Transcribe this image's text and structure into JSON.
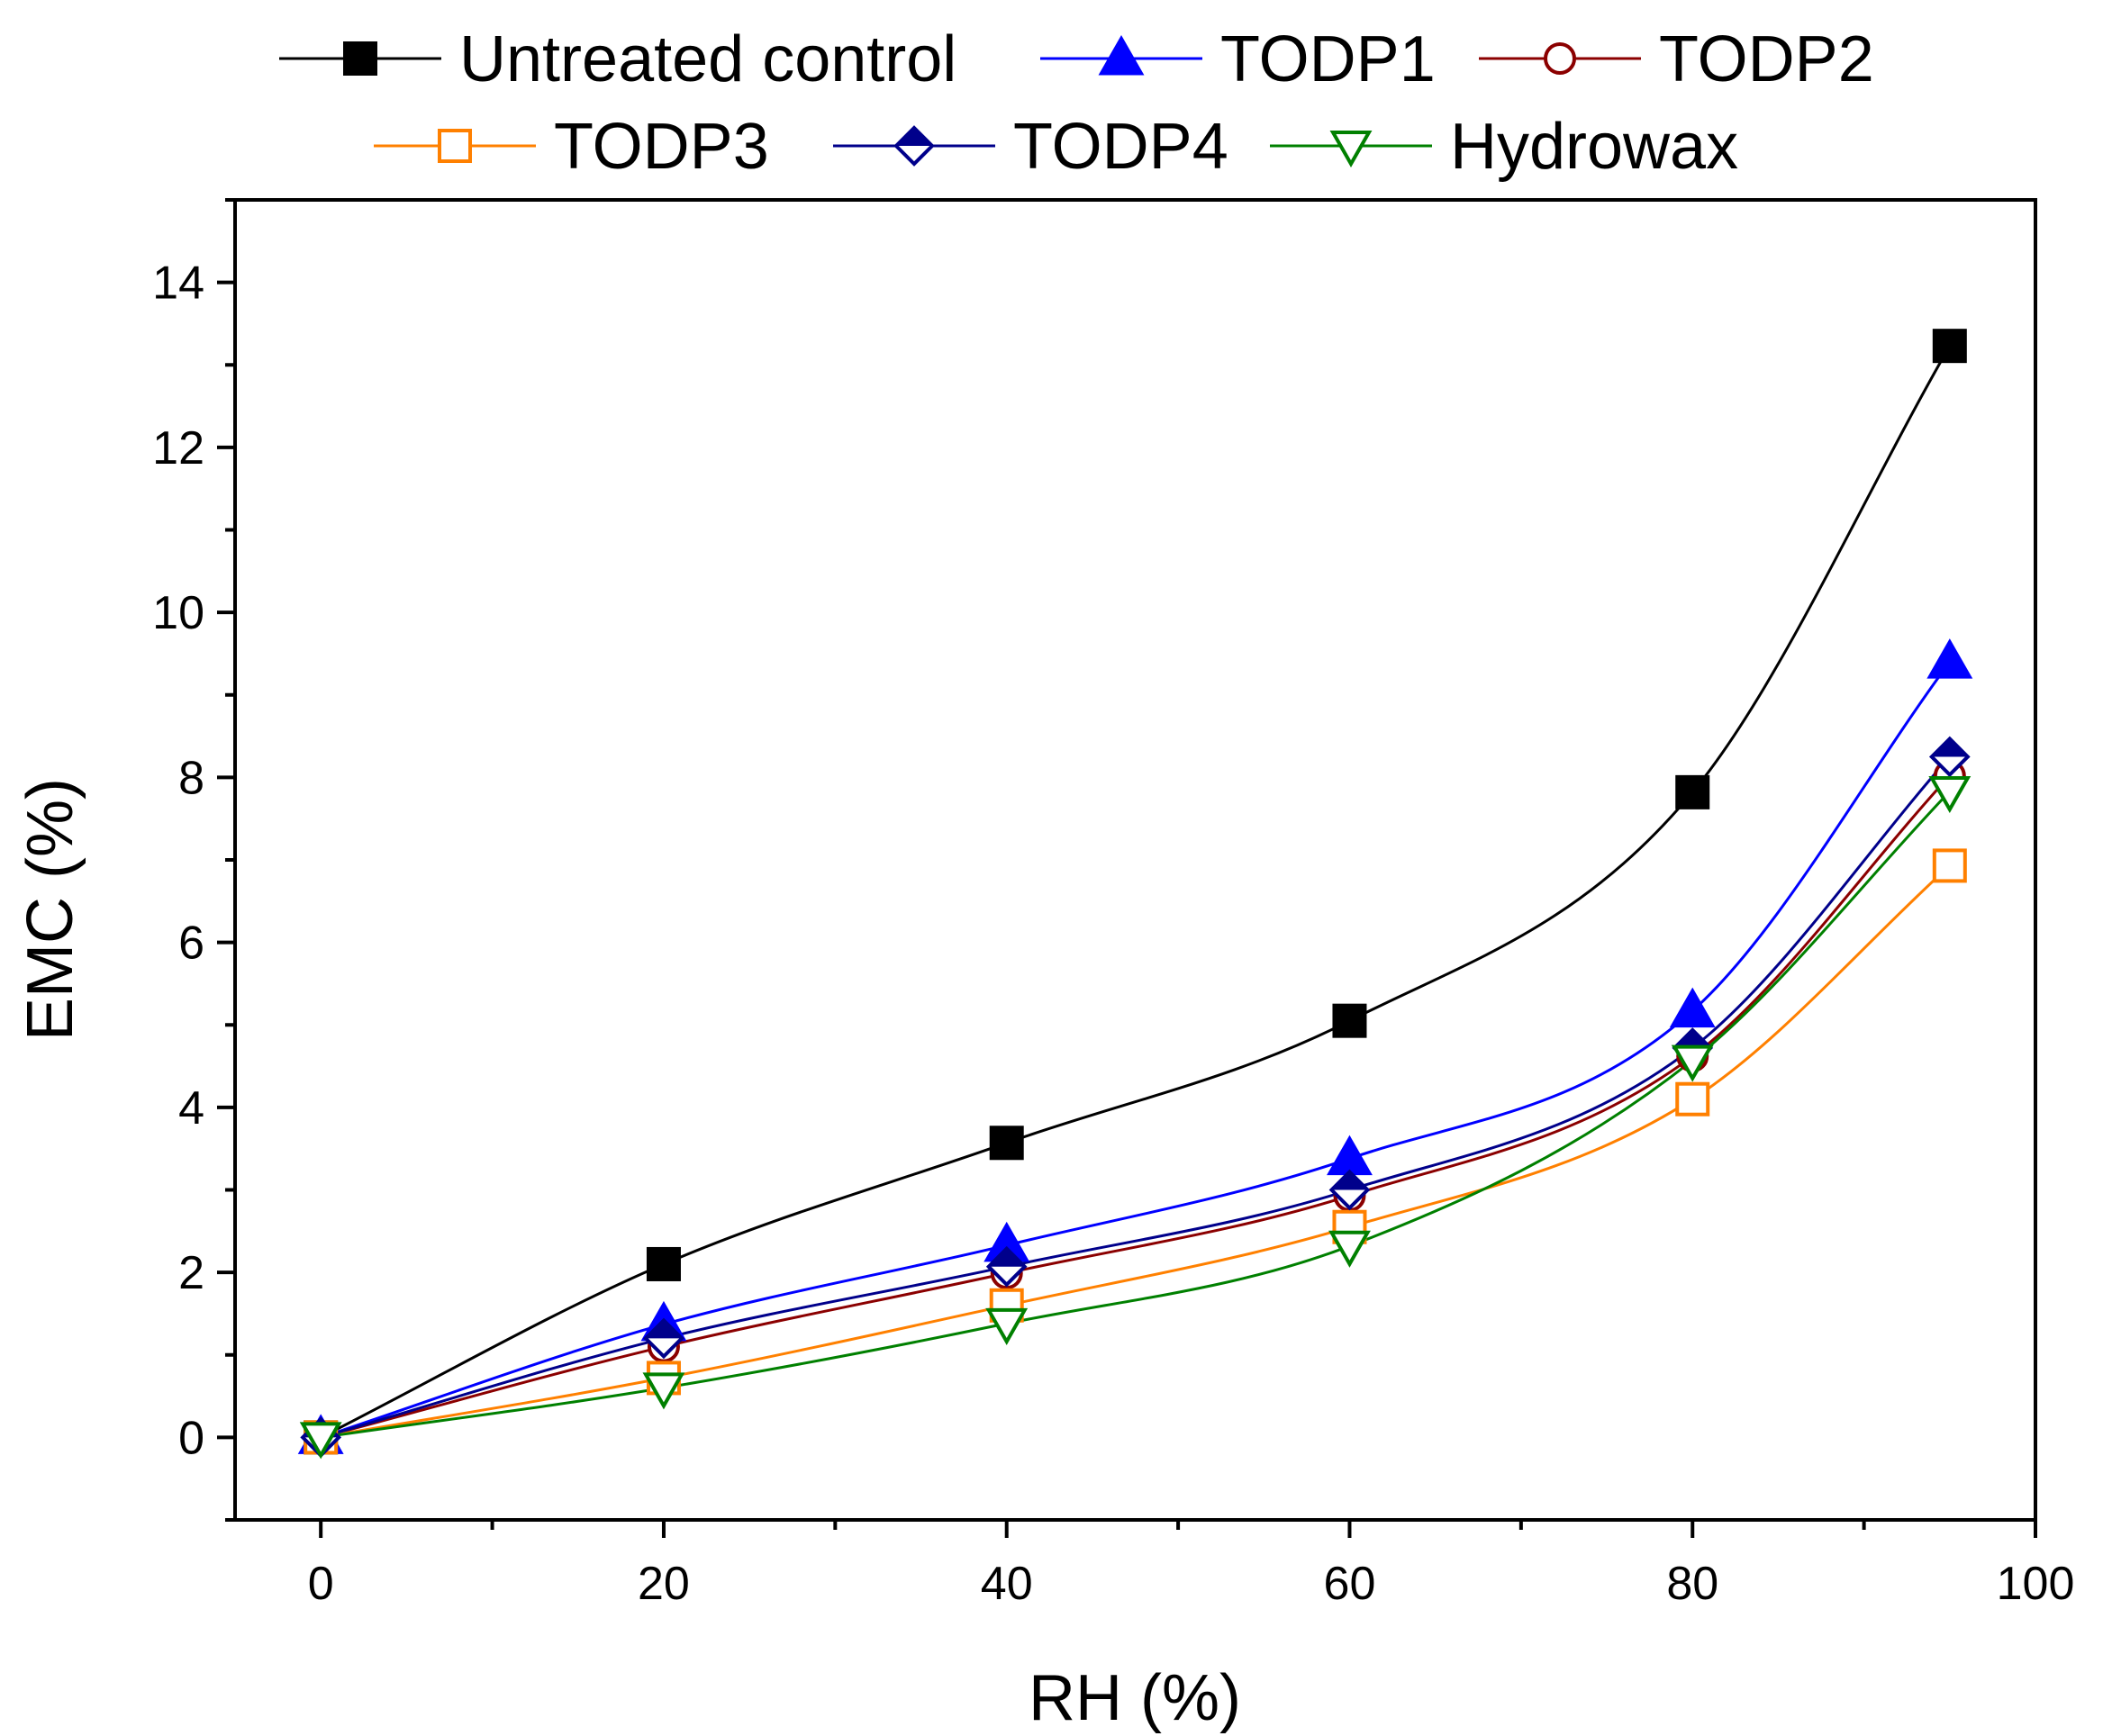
{
  "chart_data": {
    "type": "line",
    "title": "",
    "xlabel": "RH (%)",
    "ylabel": "EMC (%)",
    "xlim": [
      -5,
      100
    ],
    "ylim": [
      -1,
      15
    ],
    "xticks": [
      0,
      20,
      40,
      60,
      80,
      100
    ],
    "yticks": [
      0,
      2,
      4,
      6,
      8,
      10,
      12,
      14
    ],
    "xtick_labels": [
      "0",
      "20",
      "40",
      "60",
      "80",
      "100"
    ],
    "ytick_labels": [
      "0",
      "2",
      "4",
      "6",
      "8",
      "10",
      "12",
      "14"
    ],
    "grid": false,
    "legend_position": "top",
    "x": [
      0,
      20,
      40,
      60,
      80,
      95
    ],
    "series": [
      {
        "name": "Untreated control",
        "values": [
          0.0,
          2.1,
          3.57,
          5.05,
          7.82,
          13.23
        ],
        "color": "#000000",
        "marker": "square-filled"
      },
      {
        "name": "TODP1",
        "values": [
          0.0,
          1.37,
          2.33,
          3.38,
          5.17,
          9.4
        ],
        "color": "#0000ff",
        "marker": "triangle-up-filled"
      },
      {
        "name": "TODP2",
        "values": [
          0.0,
          1.1,
          1.99,
          2.93,
          4.62,
          8.02
        ],
        "color": "#8b0000",
        "marker": "circle-open"
      },
      {
        "name": "TODP3",
        "values": [
          0.0,
          0.72,
          1.6,
          2.55,
          4.1,
          6.93
        ],
        "color": "#ff8000",
        "marker": "square-open"
      },
      {
        "name": "TODP4",
        "values": [
          0.0,
          1.2,
          2.07,
          3.0,
          4.72,
          8.25
        ],
        "color": "#00008b",
        "marker": "diamond-half"
      },
      {
        "name": "Hydrowax",
        "values": [
          0.0,
          0.6,
          1.38,
          2.32,
          4.57,
          7.83
        ],
        "color": "#008000",
        "marker": "triangle-down-open"
      }
    ]
  }
}
